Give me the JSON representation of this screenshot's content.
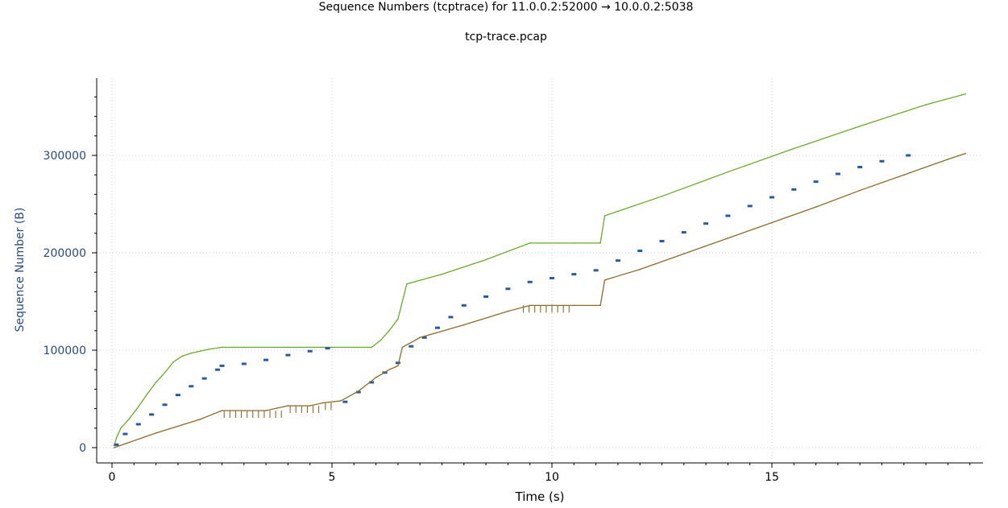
{
  "chart_data": {
    "type": "line",
    "title": "Sequence Numbers (tcptrace) for 11.0.0.2:52000 → 10.0.0.2:5038",
    "subtitle": "tcp-trace.pcap",
    "xlabel": "Time (s)",
    "ylabel": "Sequence Number (B)",
    "xlim": [
      -0.3,
      19.5
    ],
    "ylim": [
      -5000,
      380000
    ],
    "x_ticks": [
      0,
      5,
      10,
      15
    ],
    "x_tick_labels": [
      "0",
      "5",
      "10",
      "15"
    ],
    "y_ticks": [
      0,
      100000,
      200000,
      300000
    ],
    "y_tick_labels": [
      "0",
      "100000",
      "200000",
      "300000"
    ],
    "grid": true,
    "legend": "none",
    "series": [
      {
        "color": "#6aaa2a",
        "style": "step",
        "x": [
          0.05,
          0.1,
          0.2,
          0.4,
          0.6,
          0.8,
          1.0,
          1.2,
          1.4,
          1.6,
          1.8,
          2.0,
          2.2,
          2.5,
          3.0,
          4.0,
          5.0,
          5.9,
          6.1,
          6.3,
          6.5,
          6.6,
          6.7,
          7.5,
          8.5,
          9.5,
          10.5,
          11.1,
          11.2,
          12.5,
          14.0,
          15.5,
          17.0,
          18.5,
          19.4
        ],
        "values": [
          2000,
          10000,
          20000,
          30000,
          42000,
          55000,
          67000,
          77000,
          88000,
          94000,
          97000,
          99000,
          101000,
          103000,
          103000,
          103000,
          103000,
          103000,
          110000,
          120000,
          132000,
          150000,
          168000,
          178000,
          193000,
          210000,
          210000,
          210000,
          238000,
          258000,
          283000,
          307000,
          330000,
          352000,
          363000
        ]
      },
      {
        "color": "#2a5aa0",
        "style": "dashes",
        "x": [
          0.1,
          0.3,
          0.6,
          0.9,
          1.2,
          1.5,
          1.8,
          2.1,
          2.4,
          2.5,
          3.0,
          3.5,
          4.0,
          4.5,
          4.9,
          5.3,
          5.6,
          5.9,
          6.2,
          6.5,
          6.8,
          7.1,
          7.4,
          7.7,
          8.0,
          8.5,
          9.0,
          9.5,
          10.0,
          10.5,
          11.0,
          11.5,
          12.0,
          12.5,
          13.0,
          13.5,
          14.0,
          14.5,
          15.0,
          15.5,
          16.0,
          16.5,
          17.0,
          17.5,
          18.1
        ],
        "values": [
          3000,
          14000,
          24000,
          34000,
          44000,
          54000,
          63000,
          71000,
          80000,
          84000,
          86000,
          90000,
          95000,
          99000,
          102000,
          47000,
          57000,
          67000,
          77000,
          87000,
          104000,
          113000,
          123000,
          134000,
          146000,
          155000,
          163000,
          170000,
          174000,
          178000,
          182000,
          192000,
          202000,
          212000,
          221000,
          230000,
          238000,
          248000,
          257000,
          265000,
          273000,
          281000,
          288000,
          294000,
          300000
        ]
      },
      {
        "color": "#8c6a2a",
        "style": "step",
        "x": [
          0.05,
          1.0,
          2.0,
          2.5,
          3.0,
          3.5,
          4.0,
          4.5,
          4.8,
          5.2,
          5.6,
          6.0,
          6.3,
          6.5,
          6.6,
          7.0,
          8.0,
          9.0,
          9.5,
          10.0,
          10.5,
          11.1,
          11.2,
          12.0,
          13.0,
          14.0,
          15.0,
          16.0,
          17.0,
          18.0,
          19.0,
          19.4
        ],
        "values": [
          0,
          15000,
          29000,
          38000,
          38000,
          38000,
          43000,
          43000,
          46000,
          48000,
          58000,
          72000,
          80000,
          84000,
          103000,
          113000,
          126000,
          140000,
          146000,
          146000,
          146000,
          146000,
          172000,
          183000,
          199000,
          215000,
          231000,
          247000,
          264000,
          280000,
          296000,
          302000
        ]
      }
    ]
  }
}
